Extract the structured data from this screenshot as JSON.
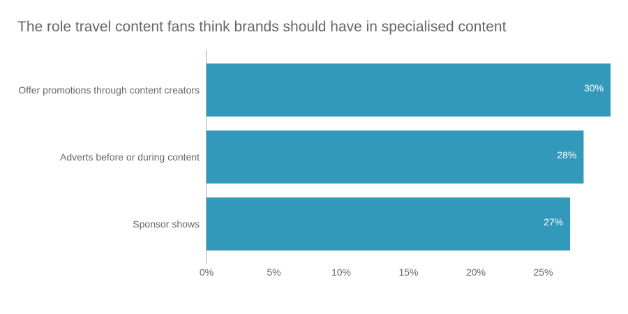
{
  "chart_data": {
    "type": "bar",
    "orientation": "horizontal",
    "title": "The role travel content fans think brands should have in specialised content",
    "xlabel": "",
    "ylabel": "",
    "categories": [
      "Offer promotions through content creators",
      "Adverts before or during content",
      "Sponsor shows"
    ],
    "values": [
      30,
      28,
      27
    ],
    "value_labels": [
      "30%",
      "28%",
      "27%"
    ],
    "xlim": [
      0,
      30
    ],
    "x_ticks": [
      0,
      5,
      10,
      15,
      20,
      25
    ],
    "x_tick_labels": [
      "0%",
      "5%",
      "10%",
      "15%",
      "20%",
      "25%"
    ],
    "grid": false,
    "legend": "none",
    "colors": {
      "bar": "#3399bb",
      "text": "#666666",
      "axis": "#aaaaaa",
      "value_text": "#ffffff"
    }
  }
}
